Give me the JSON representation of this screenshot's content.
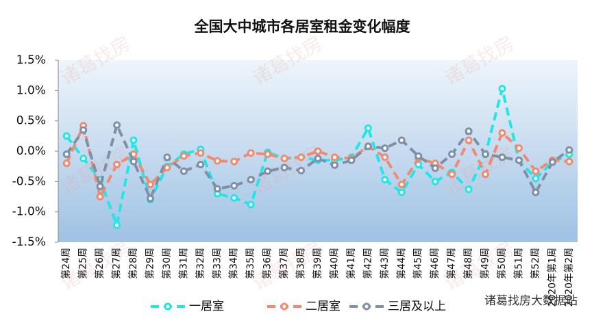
{
  "chart_data": {
    "type": "line",
    "title": "全国大中城市各居室租金变化幅度",
    "watermark": "诸葛找房",
    "source": "诸葛找房大数据站",
    "categories": [
      "第24周",
      "第25周",
      "第26周",
      "第27周",
      "第28周",
      "第29周",
      "第30周",
      "第31周",
      "第32周",
      "第33周",
      "第34周",
      "第35周",
      "第36周",
      "第37周",
      "第38周",
      "第39周",
      "第40周",
      "第41周",
      "第42周",
      "第43周",
      "第44周",
      "第45周",
      "第46周",
      "第47周",
      "第48周",
      "第49周",
      "第50周",
      "第51周",
      "第52周",
      "2020年第1周",
      "2020年第2周"
    ],
    "series": [
      {
        "name": "一居室",
        "color": "#22e6e6",
        "values": [
          0.25,
          -0.12,
          -0.47,
          -1.22,
          0.18,
          -0.8,
          -0.25,
          -0.05,
          0.03,
          -0.7,
          -0.77,
          -0.88,
          -0.02,
          -0.12,
          -0.1,
          -0.15,
          -0.15,
          -0.1,
          0.38,
          -0.47,
          -0.68,
          -0.22,
          -0.5,
          -0.35,
          -0.63,
          -0.05,
          1.03,
          -0.15,
          -0.45,
          -0.18,
          -0.05
        ]
      },
      {
        "name": "二居室",
        "color": "#f08a70",
        "values": [
          -0.2,
          0.42,
          -0.75,
          -0.22,
          -0.05,
          -0.55,
          -0.27,
          -0.08,
          -0.03,
          -0.16,
          -0.17,
          -0.03,
          -0.05,
          -0.12,
          -0.1,
          0.0,
          -0.1,
          -0.12,
          0.08,
          -0.1,
          -0.55,
          -0.12,
          -0.2,
          -0.38,
          0.18,
          -0.38,
          0.3,
          0.05,
          -0.33,
          -0.15,
          -0.17
        ]
      },
      {
        "name": "三居及以上",
        "color": "#7f8fa6",
        "values": [
          -0.05,
          0.35,
          -0.58,
          0.43,
          -0.17,
          -0.78,
          -0.1,
          -0.33,
          -0.22,
          -0.62,
          -0.57,
          -0.47,
          -0.33,
          -0.27,
          -0.32,
          -0.12,
          -0.23,
          -0.15,
          0.08,
          0.05,
          0.18,
          -0.08,
          -0.28,
          -0.05,
          0.33,
          -0.05,
          -0.1,
          -0.15,
          -0.68,
          -0.18,
          0.02
        ]
      }
    ],
    "ylim": [
      -1.5,
      1.5
    ],
    "yticks": [
      {
        "value": 1.5,
        "label": "1.5%"
      },
      {
        "value": 1.0,
        "label": "1.0%"
      },
      {
        "value": 0.5,
        "label": "0.5%"
      },
      {
        "value": 0.0,
        "label": "0.0%"
      },
      {
        "value": -0.5,
        "label": "-0.5%"
      },
      {
        "value": -1.0,
        "label": "-1.0%"
      },
      {
        "value": -1.5,
        "label": "-1.5%"
      }
    ]
  }
}
